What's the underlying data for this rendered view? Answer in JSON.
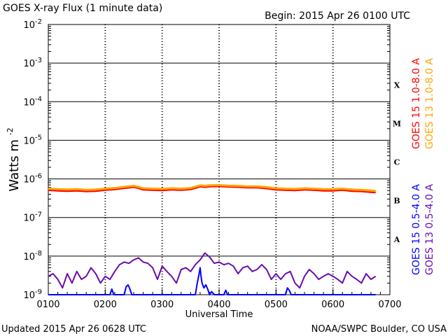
{
  "header": {
    "title": "GOES X-ray Flux (1 minute data)",
    "begin": "Begin: 2015 Apr 26 0100 UTC"
  },
  "footer": {
    "updated": "Updated 2015 Apr 26 0628 UTC",
    "credit": "NOAA/SWPC Boulder, CO USA"
  },
  "colors": {
    "goes15_long": "#ff0000",
    "goes13_long": "#ffa500",
    "goes15_short": "#0000ff",
    "goes13_short": "#6a0dad"
  },
  "chart_data": {
    "type": "line",
    "title": "GOES X-ray Flux (1 minute data)",
    "xlabel": "Universal Time",
    "ylabel": "Watts m-2",
    "ylabel_base": "Watts m",
    "ylabel_exp": "-2",
    "y_scale": "log",
    "ylim": [
      1e-09,
      0.01
    ],
    "xlim": [
      "0100",
      "0700"
    ],
    "x_ticks": [
      "0100",
      "0200",
      "0300",
      "0400",
      "0500",
      "0600",
      "0700"
    ],
    "y_ticks": [
      {
        "base": "10",
        "exp": "-2",
        "value": 0.01
      },
      {
        "base": "10",
        "exp": "-3",
        "value": 0.001
      },
      {
        "base": "10",
        "exp": "-4",
        "value": 0.0001
      },
      {
        "base": "10",
        "exp": "-5",
        "value": 1e-05
      },
      {
        "base": "10",
        "exp": "-6",
        "value": 1e-06
      },
      {
        "base": "10",
        "exp": "-7",
        "value": 1e-07
      },
      {
        "base": "10",
        "exp": "-8",
        "value": 1e-08
      },
      {
        "base": "10",
        "exp": "-9",
        "value": 1e-09
      }
    ],
    "flare_classes": [
      {
        "label": "X",
        "value": 0.0001
      },
      {
        "label": "M",
        "value": 1e-05
      },
      {
        "label": "C",
        "value": 1e-06
      },
      {
        "label": "B",
        "value": 1e-07
      },
      {
        "label": "A",
        "value": 1e-08
      }
    ],
    "grid": true,
    "legend": "right",
    "legend_right_outer": [
      {
        "label": "GOES 15 1.0-8.0 A",
        "color": "#ff0000"
      },
      {
        "label": "GOES 15 0.5-4.0 A",
        "color": "#0000ff"
      }
    ],
    "legend_right_inner": [
      {
        "label": "GOES 13 1.0-8.0 A",
        "color": "#ffa500"
      },
      {
        "label": "GOES 13 0.5-4.0 A",
        "color": "#6a0dad"
      }
    ],
    "series": [
      {
        "name": "GOES 15 1.0-8.0 A",
        "color": "#ff0000",
        "x": [
          "0100",
          "0110",
          "0120",
          "0130",
          "0140",
          "0150",
          "0200",
          "0210",
          "0220",
          "0230",
          "0235",
          "0240",
          "0250",
          "0300",
          "0310",
          "0320",
          "0330",
          "0340",
          "0345",
          "0350",
          "0400",
          "0410",
          "0420",
          "0430",
          "0440",
          "0450",
          "0500",
          "0510",
          "0520",
          "0530",
          "0540",
          "0550",
          "0600",
          "0610",
          "0620",
          "0630",
          "0640",
          "0645"
        ],
        "values": [
          5.2e-07,
          5e-07,
          4.9e-07,
          5e-07,
          4.8e-07,
          4.9e-07,
          5.2e-07,
          5.4e-07,
          5.8e-07,
          6.2e-07,
          5.8e-07,
          5.3e-07,
          5.2e-07,
          5.1e-07,
          5.3e-07,
          5.2e-07,
          5.4e-07,
          6.4e-07,
          6.2e-07,
          6.4e-07,
          6.5e-07,
          6.3e-07,
          6.2e-07,
          6e-07,
          6e-07,
          5.7e-07,
          5.3e-07,
          5.2e-07,
          5.1e-07,
          5.3e-07,
          5.2e-07,
          5e-07,
          5e-07,
          5.2e-07,
          4.9e-07,
          4.8e-07,
          4.6e-07,
          4.5e-07
        ]
      },
      {
        "name": "GOES 13 1.0-8.0 A",
        "color": "#ffa500",
        "x": [
          "0100",
          "0110",
          "0120",
          "0130",
          "0140",
          "0150",
          "0200",
          "0210",
          "0220",
          "0230",
          "0235",
          "0240",
          "0250",
          "0300",
          "0310",
          "0320",
          "0330",
          "0340",
          "0345",
          "0350",
          "0400",
          "0410",
          "0420",
          "0430",
          "0440",
          "0450",
          "0500",
          "0510",
          "0520",
          "0530",
          "0540",
          "0550",
          "0600",
          "0610",
          "0620",
          "0630",
          "0640",
          "0645"
        ],
        "values": [
          5.6e-07,
          5.4e-07,
          5.3e-07,
          5.4e-07,
          5.2e-07,
          5.3e-07,
          5.6e-07,
          5.8e-07,
          6.2e-07,
          6.6e-07,
          6.2e-07,
          5.7e-07,
          5.6e-07,
          5.5e-07,
          5.7e-07,
          5.6e-07,
          5.8e-07,
          6.8e-07,
          6.6e-07,
          6.8e-07,
          6.9e-07,
          6.7e-07,
          6.6e-07,
          6.4e-07,
          6.4e-07,
          6.1e-07,
          5.7e-07,
          5.6e-07,
          5.5e-07,
          5.7e-07,
          5.6e-07,
          5.4e-07,
          5.4e-07,
          5.6e-07,
          5.3e-07,
          5.2e-07,
          5e-07,
          4.9e-07
        ]
      },
      {
        "name": "GOES 13 0.5-4.0 A",
        "color": "#6a0dad",
        "x": [
          "0100",
          "0105",
          "0110",
          "0115",
          "0120",
          "0125",
          "0130",
          "0135",
          "0140",
          "0145",
          "0150",
          "0155",
          "0200",
          "0205",
          "0210",
          "0215",
          "0220",
          "0225",
          "0230",
          "0235",
          "0240",
          "0245",
          "0250",
          "0255",
          "0300",
          "0305",
          "0310",
          "0315",
          "0320",
          "0325",
          "0330",
          "0335",
          "0340",
          "0345",
          "0350",
          "0355",
          "0400",
          "0405",
          "0410",
          "0415",
          "0420",
          "0425",
          "0430",
          "0435",
          "0440",
          "0445",
          "0450",
          "0455",
          "0500",
          "0505",
          "0510",
          "0515",
          "0520",
          "0525",
          "0530",
          "0535",
          "0540",
          "0545",
          "0550",
          "0555",
          "0600",
          "0605",
          "0610",
          "0615",
          "0620",
          "0625",
          "0630",
          "0635",
          "0640",
          "0645"
        ],
        "values": [
          3e-09,
          3.5e-09,
          2.5e-09,
          1.5e-09,
          3.5e-09,
          2e-09,
          4e-09,
          2.5e-09,
          3e-09,
          5e-09,
          3.5e-09,
          2e-09,
          3e-09,
          2.5e-09,
          4e-09,
          6e-09,
          7e-09,
          6.5e-09,
          8e-09,
          9e-09,
          7e-09,
          6.5e-09,
          5e-09,
          2.5e-09,
          5.5e-09,
          4e-09,
          3e-09,
          2e-09,
          4.5e-09,
          5e-09,
          4e-09,
          6e-09,
          8e-09,
          1.2e-08,
          9.5e-09,
          6.5e-09,
          7e-09,
          6e-09,
          6.5e-09,
          5.5e-09,
          3.5e-09,
          5e-09,
          5.5e-09,
          4e-09,
          4.5e-09,
          6e-09,
          4.5e-09,
          2.5e-09,
          3.5e-09,
          2.5e-09,
          3.5e-09,
          4e-09,
          2e-09,
          1.5e-09,
          3e-09,
          4.5e-09,
          3.5e-09,
          2.5e-09,
          3e-09,
          3.5e-09,
          3e-09,
          2.5e-09,
          2e-09,
          4e-09,
          3e-09,
          2.5e-09,
          2e-09,
          3.5e-09,
          2.5e-09,
          3e-09
        ]
      },
      {
        "name": "GOES 15 0.5-4.0 A",
        "color": "#0000ff",
        "x": [
          "0100",
          "0150",
          "0205",
          "0207",
          "0209",
          "0215",
          "0220",
          "0222",
          "0224",
          "0226",
          "0228",
          "0232",
          "0300",
          "0335",
          "0337",
          "0339",
          "0340",
          "0341",
          "0342",
          "0344",
          "0346",
          "0348",
          "0350",
          "0352",
          "0355",
          "0405",
          "0407",
          "0409",
          "0440",
          "0470",
          "0472",
          "0474",
          "0476",
          "0480",
          "0645"
        ],
        "values": [
          1e-09,
          1e-09,
          1e-09,
          1.4e-09,
          1e-09,
          1e-09,
          1e-09,
          1.6e-09,
          1.8e-09,
          1.4e-09,
          1e-09,
          1e-09,
          1e-09,
          1e-09,
          2e-09,
          3.5e-09,
          5e-09,
          3e-09,
          2e-09,
          1.5e-09,
          1.8e-09,
          1.4e-09,
          1e-09,
          1.2e-09,
          1e-09,
          1e-09,
          1.3e-09,
          1e-09,
          1e-09,
          1e-09,
          1.5e-09,
          1.3e-09,
          1e-09,
          1e-09,
          1e-09
        ]
      }
    ]
  }
}
